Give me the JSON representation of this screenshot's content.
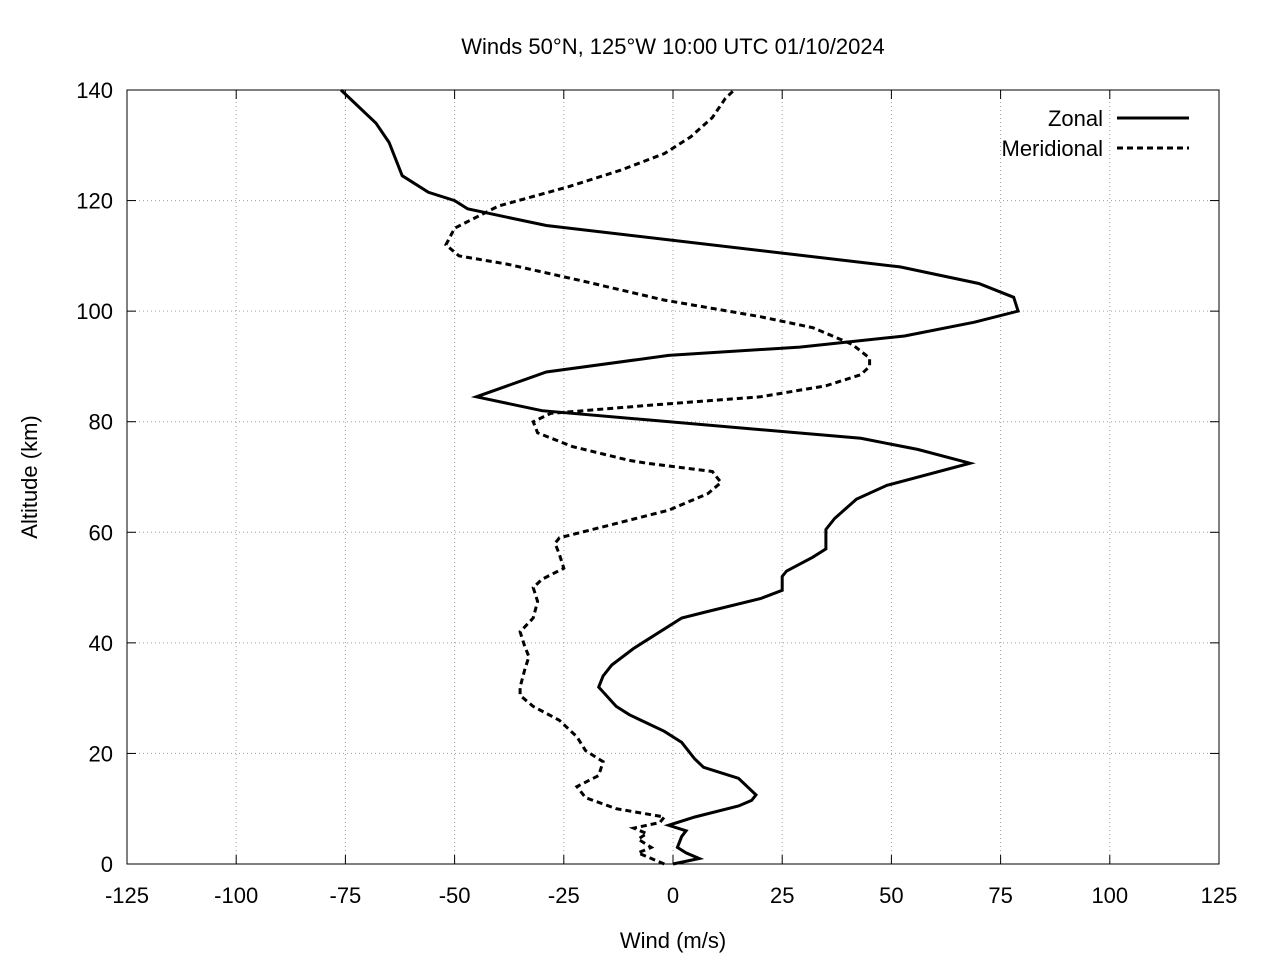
{
  "chart_data": {
    "type": "line",
    "title": "Winds 50°N, 125°W 10:00 UTC 01/10/2024",
    "xlabel": "Wind (m/s)",
    "ylabel": "Altitude (km)",
    "xlim": [
      -125,
      125
    ],
    "ylim": [
      0,
      140
    ],
    "xticks": [
      -125,
      -100,
      -75,
      -50,
      -25,
      0,
      25,
      50,
      75,
      100,
      125
    ],
    "yticks": [
      0,
      20,
      40,
      60,
      80,
      100,
      120,
      140
    ],
    "grid": true,
    "legend_position": "top-right",
    "series": [
      {
        "name": "Zonal",
        "style": "solid",
        "color": "#000000",
        "points": [
          [
            0,
            0
          ],
          [
            6,
            1
          ],
          [
            3,
            2
          ],
          [
            1,
            3
          ],
          [
            2,
            5
          ],
          [
            3,
            6
          ],
          [
            -1,
            7
          ],
          [
            5,
            8.5
          ],
          [
            15,
            10.5
          ],
          [
            18,
            11.5
          ],
          [
            19,
            12.5
          ],
          [
            15,
            15.5
          ],
          [
            7,
            17.5
          ],
          [
            5,
            19
          ],
          [
            2,
            22
          ],
          [
            -2,
            24
          ],
          [
            -10,
            27
          ],
          [
            -13,
            28.5
          ],
          [
            -17,
            32
          ],
          [
            -16,
            34
          ],
          [
            -14,
            36
          ],
          [
            -9,
            39
          ],
          [
            -5,
            41
          ],
          [
            -1,
            43
          ],
          [
            2,
            44.5
          ],
          [
            7,
            45.5
          ],
          [
            20,
            48
          ],
          [
            25,
            49.5
          ],
          [
            25,
            52
          ],
          [
            26,
            53
          ],
          [
            32,
            55.5
          ],
          [
            35,
            57
          ],
          [
            35,
            60.5
          ],
          [
            37,
            62.5
          ],
          [
            42,
            66
          ],
          [
            49,
            68.5
          ],
          [
            68,
            72.5
          ],
          [
            56,
            75
          ],
          [
            43,
            77
          ],
          [
            -30,
            82
          ],
          [
            -45,
            84.5
          ],
          [
            -29,
            89
          ],
          [
            -1,
            92
          ],
          [
            29,
            93.5
          ],
          [
            53,
            95.5
          ],
          [
            69,
            98
          ],
          [
            79,
            100
          ],
          [
            78,
            102.5
          ],
          [
            70,
            105
          ],
          [
            52,
            108
          ],
          [
            -29,
            115.5
          ],
          [
            -47,
            118.5
          ],
          [
            -50,
            120
          ],
          [
            -56,
            121.5
          ],
          [
            -62,
            124.5
          ],
          [
            -65,
            130.5
          ],
          [
            -68,
            134
          ],
          [
            -72,
            137
          ],
          [
            -76,
            140
          ]
        ]
      },
      {
        "name": "Meridional",
        "style": "dashed",
        "color": "#000000",
        "points": [
          [
            -2,
            0
          ],
          [
            -8,
            2
          ],
          [
            -5,
            3
          ],
          [
            -8,
            4.5
          ],
          [
            -6,
            5.5
          ],
          [
            -9,
            6.5
          ],
          [
            -3,
            7.5
          ],
          [
            -2,
            8.5
          ],
          [
            -13,
            10
          ],
          [
            -20,
            12
          ],
          [
            -22,
            14
          ],
          [
            -17,
            16
          ],
          [
            -16,
            18.5
          ],
          [
            -20,
            20.5
          ],
          [
            -22,
            23
          ],
          [
            -26,
            26
          ],
          [
            -32,
            28.5
          ],
          [
            -35,
            30.5
          ],
          [
            -35,
            32
          ],
          [
            -34,
            35
          ],
          [
            -33,
            37.5
          ],
          [
            -34,
            39.5
          ],
          [
            -35,
            42
          ],
          [
            -32,
            44.5
          ],
          [
            -31,
            47.5
          ],
          [
            -32,
            50
          ],
          [
            -30,
            51.5
          ],
          [
            -25,
            53.5
          ],
          [
            -26,
            56
          ],
          [
            -27,
            58
          ],
          [
            -26,
            59
          ],
          [
            -16,
            61
          ],
          [
            -1,
            64
          ],
          [
            8,
            67
          ],
          [
            11,
            69
          ],
          [
            9,
            71
          ],
          [
            -6,
            72.5
          ],
          [
            -10,
            73
          ],
          [
            -23,
            75.5
          ],
          [
            -31,
            78
          ],
          [
            -32,
            80
          ],
          [
            -28,
            81.5
          ],
          [
            -5,
            83
          ],
          [
            20,
            84.5
          ],
          [
            35,
            86.5
          ],
          [
            43,
            88.5
          ],
          [
            45,
            90
          ],
          [
            45,
            91.5
          ],
          [
            41,
            94
          ],
          [
            32,
            97
          ],
          [
            20,
            99
          ],
          [
            -2,
            102
          ],
          [
            -21,
            105.5
          ],
          [
            -38,
            108.5
          ],
          [
            -49,
            110
          ],
          [
            -52,
            112
          ],
          [
            -50,
            115
          ],
          [
            -40,
            119
          ],
          [
            -24,
            122.5
          ],
          [
            -12,
            125.5
          ],
          [
            -2,
            128.5
          ],
          [
            4,
            131.5
          ],
          [
            9,
            135
          ],
          [
            12,
            138.5
          ],
          [
            14,
            140
          ]
        ]
      }
    ]
  }
}
